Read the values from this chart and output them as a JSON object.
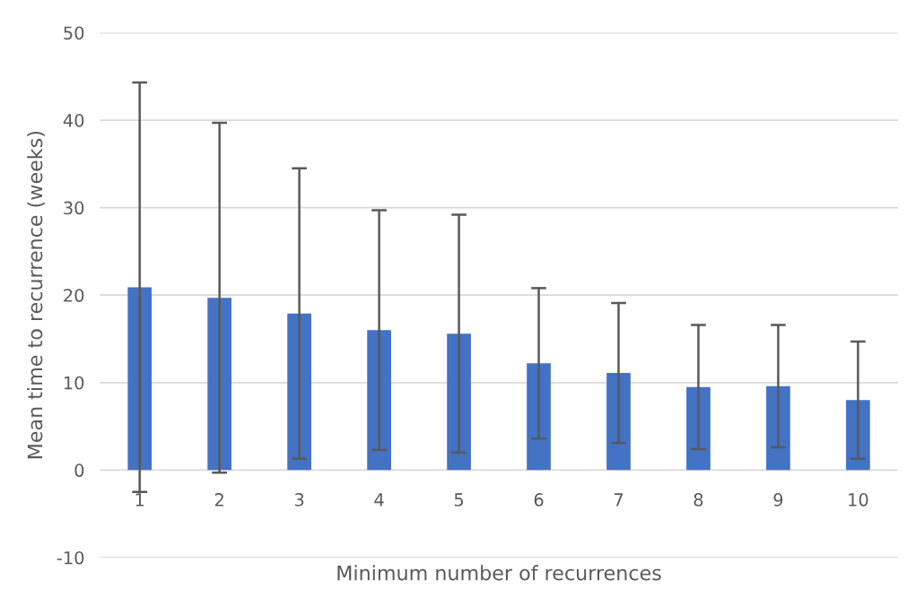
{
  "chart_data": {
    "type": "bar",
    "xlabel": "Minimum number of recurrences",
    "ylabel": "Mean time to recurrence (weeks)",
    "categories": [
      "1",
      "2",
      "3",
      "4",
      "5",
      "6",
      "7",
      "8",
      "9",
      "10"
    ],
    "values": [
      20.9,
      19.7,
      17.9,
      16.0,
      15.6,
      12.2,
      11.1,
      9.5,
      9.6,
      8.0
    ],
    "errors": [
      23.4,
      20.0,
      16.6,
      13.7,
      13.6,
      8.6,
      8.0,
      7.1,
      7.0,
      6.7
    ],
    "color": "#4472c4",
    "ylim": [
      -10,
      50
    ],
    "yticks": [
      -10,
      0,
      10,
      20,
      30,
      40,
      50
    ],
    "grid": "y"
  }
}
